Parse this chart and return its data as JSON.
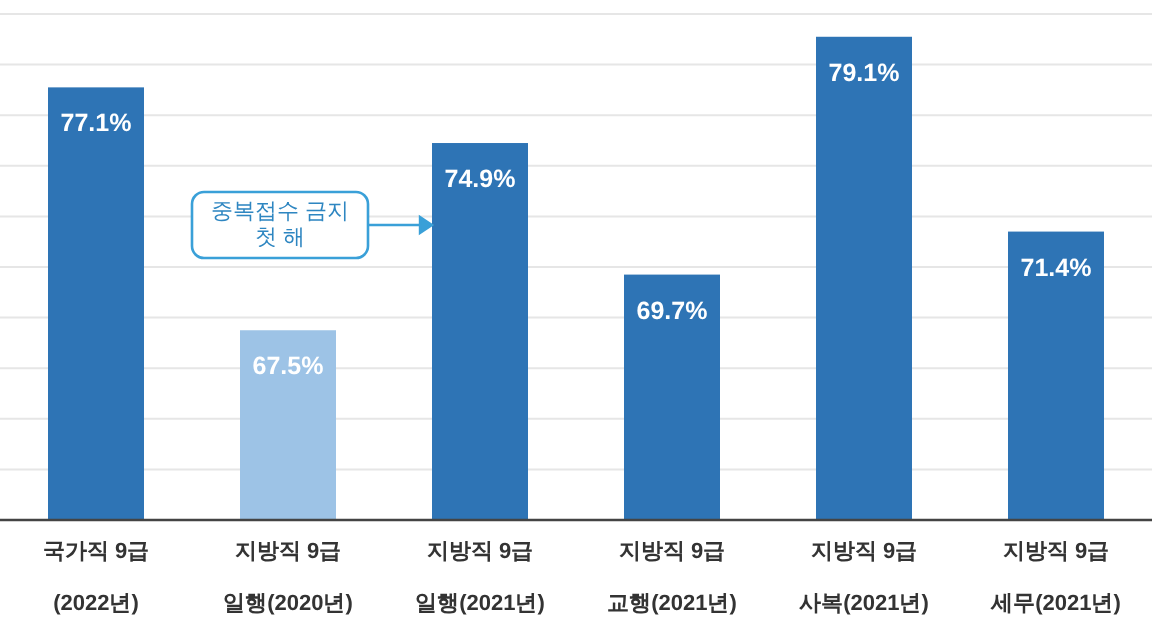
{
  "chart_data": {
    "type": "bar",
    "categories": [
      "국가직 9급\n(2022년)",
      "지방직 9급\n일행(2020년)",
      "지방직 9급\n일행(2021년)",
      "지방직 9급\n교행(2021년)",
      "지방직 9급\n사복(2021년)",
      "지방직 9급\n세무(2021년)"
    ],
    "values": [
      77.1,
      67.5,
      74.9,
      69.7,
      79.1,
      71.4
    ],
    "colors": [
      "#2e74b5",
      "#9dc3e6",
      "#2e74b5",
      "#2e74b5",
      "#2e74b5",
      "#2e74b5"
    ],
    "value_labels": [
      "77.1%",
      "67.5%",
      "74.9%",
      "69.7%",
      "79.1%",
      "71.4%"
    ],
    "ylim": [
      60,
      80
    ],
    "yticks": [
      {
        "value": 60,
        "label": null
      },
      {
        "value": 62,
        "label": null
      },
      {
        "value": 64,
        "label": null
      },
      {
        "value": 66,
        "label": null
      },
      {
        "value": 68,
        "label": null
      },
      {
        "value": 70,
        "label": null
      },
      {
        "value": 72,
        "label": null
      },
      {
        "value": 74,
        "label": null
      },
      {
        "value": 76,
        "label": null
      },
      {
        "value": 78,
        "label": null
      },
      {
        "value": 80,
        "label": null
      }
    ],
    "grid": "y",
    "annotations": [
      "중복접수 금지\n첫 해"
    ]
  }
}
